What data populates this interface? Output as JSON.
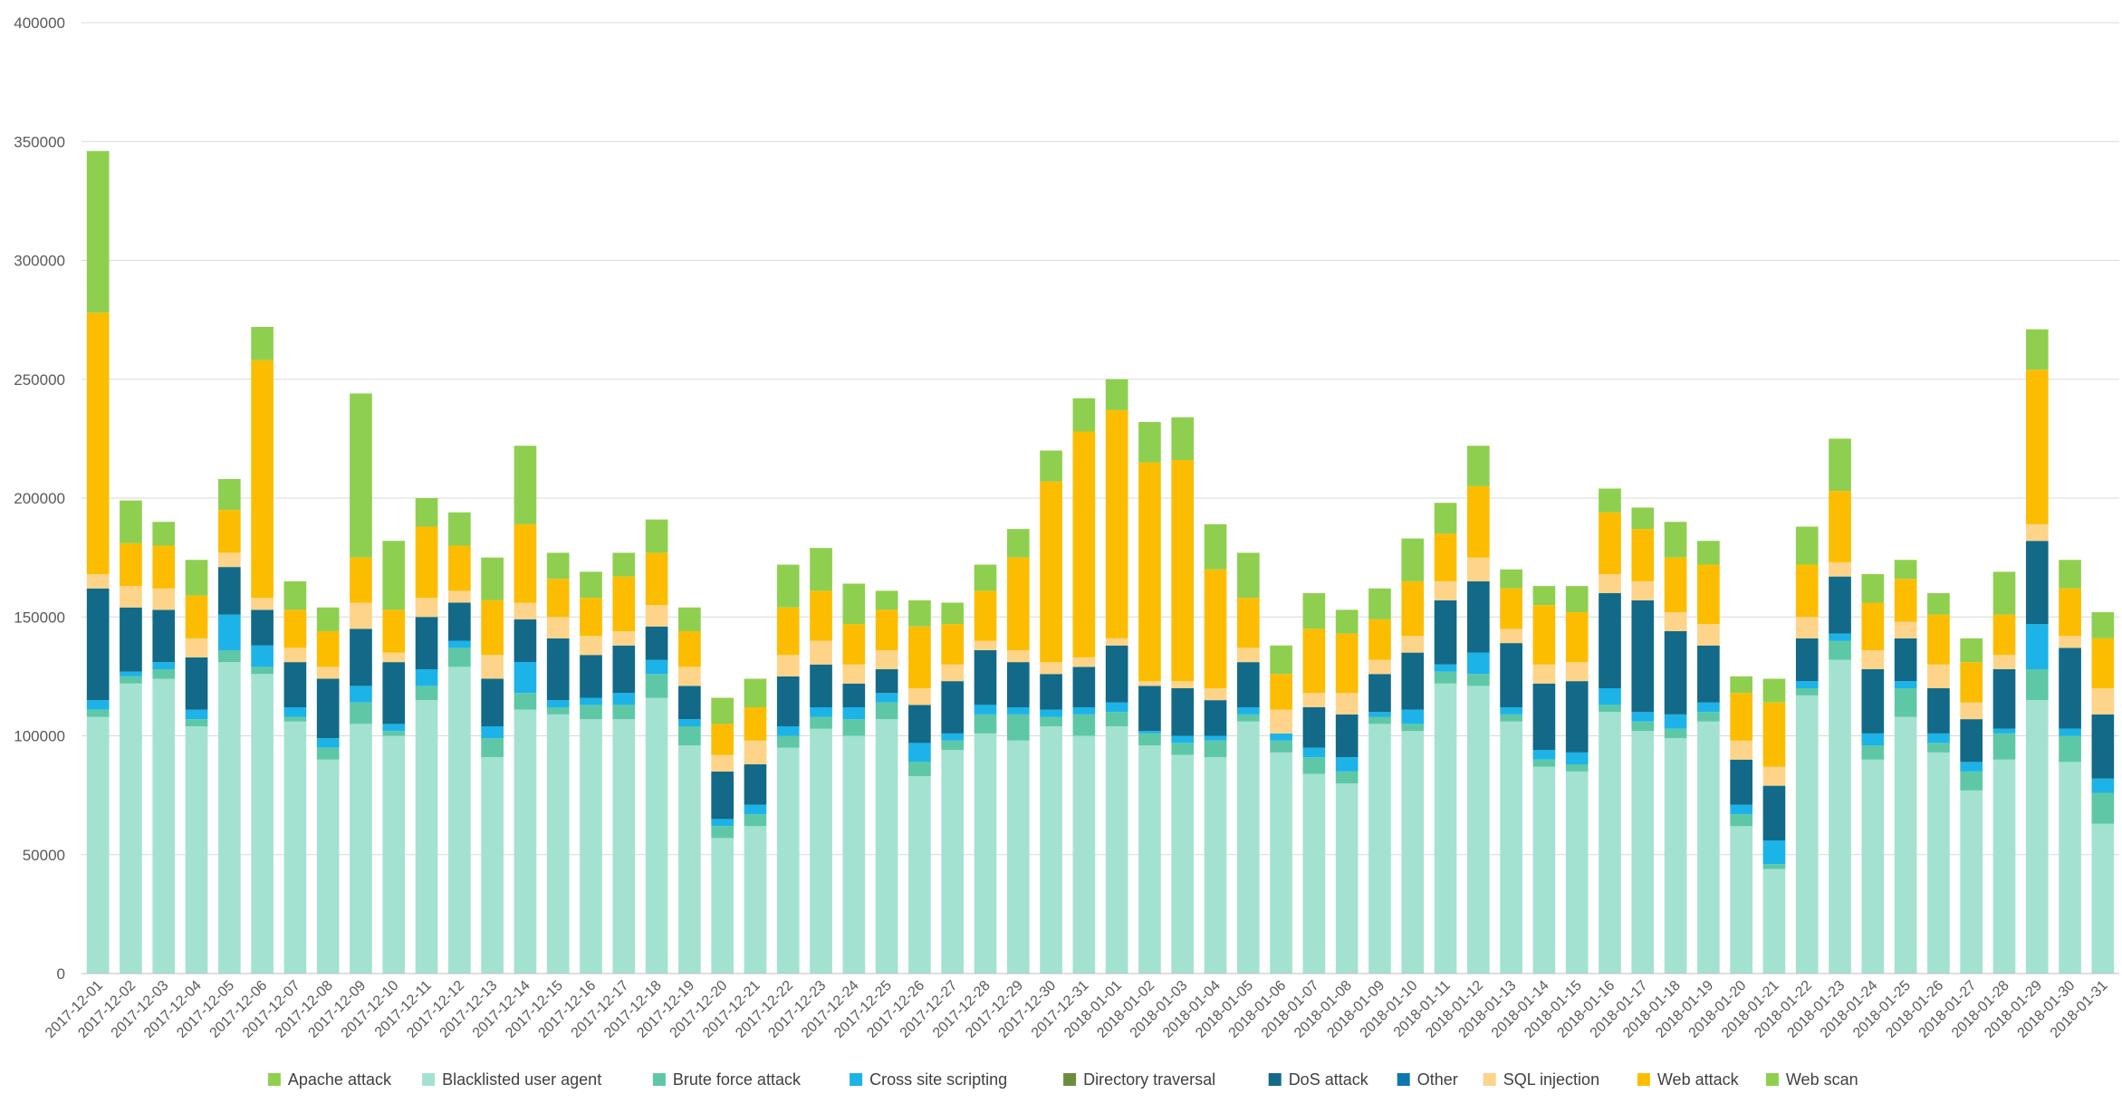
{
  "chart_data": {
    "type": "bar",
    "stacked": true,
    "title": "",
    "xlabel": "",
    "ylabel": "",
    "ylim": [
      0,
      400000
    ],
    "yticks": [
      "0",
      "50000",
      "100000",
      "150000",
      "200000",
      "250000",
      "300000",
      "350000",
      "400000"
    ],
    "grid": "horizontal",
    "legend_position": "bottom",
    "categories": [
      "2017-12-01",
      "2017-12-02",
      "2017-12-03",
      "2017-12-04",
      "2017-12-05",
      "2017-12-06",
      "2017-12-07",
      "2017-12-08",
      "2017-12-09",
      "2017-12-10",
      "2017-12-11",
      "2017-12-12",
      "2017-12-13",
      "2017-12-14",
      "2017-12-15",
      "2017-12-16",
      "2017-12-17",
      "2017-12-18",
      "2017-12-19",
      "2017-12-20",
      "2017-12-21",
      "2017-12-22",
      "2017-12-23",
      "2017-12-24",
      "2017-12-25",
      "2017-12-26",
      "2017-12-27",
      "2017-12-28",
      "2017-12-29",
      "2017-12-30",
      "2017-12-31",
      "2018-01-01",
      "2018-01-02",
      "2018-01-03",
      "2018-01-04",
      "2018-01-05",
      "2018-01-06",
      "2018-01-07",
      "2018-01-08",
      "2018-01-09",
      "2018-01-10",
      "2018-01-11",
      "2018-01-12",
      "2018-01-13",
      "2018-01-14",
      "2018-01-15",
      "2018-01-16",
      "2018-01-17",
      "2018-01-18",
      "2018-01-19",
      "2018-01-20",
      "2018-01-21",
      "2018-01-22",
      "2018-01-23",
      "2018-01-24",
      "2018-01-25",
      "2018-01-26",
      "2018-01-27",
      "2018-01-28",
      "2018-01-29",
      "2018-01-30",
      "2018-01-31"
    ],
    "series": [
      {
        "name": "Blacklisted user agent",
        "color": "#a3e2d1",
        "values": [
          108000,
          122000,
          124000,
          104000,
          131000,
          126000,
          106000,
          90000,
          105000,
          100000,
          115000,
          129000,
          91000,
          111000,
          109000,
          107000,
          107000,
          116000,
          96000,
          57000,
          62000,
          95000,
          103000,
          100000,
          107000,
          83000,
          94000,
          101000,
          98000,
          104000,
          100000,
          104000,
          96000,
          92000,
          91000,
          106000,
          93000,
          84000,
          80000,
          105000,
          102000,
          122000,
          121000,
          106000,
          87000,
          85000,
          110000,
          102000,
          99000,
          106000,
          62000,
          44000,
          117000,
          132000,
          90000,
          108000,
          93000,
          77000,
          90000,
          115000,
          89000,
          63000
        ]
      },
      {
        "name": "Brute force attack",
        "color": "#5ec8a6",
        "values": [
          3000,
          3000,
          4000,
          3000,
          5000,
          3000,
          2000,
          5000,
          9000,
          2000,
          6000,
          8000,
          8000,
          7000,
          3000,
          6000,
          6000,
          10000,
          8000,
          5000,
          5000,
          5000,
          5000,
          7000,
          7000,
          6000,
          4000,
          8000,
          11000,
          4000,
          9000,
          6000,
          5000,
          5000,
          7000,
          3000,
          5000,
          7000,
          5000,
          3000,
          3000,
          5000,
          5000,
          3000,
          3000,
          3000,
          3000,
          4000,
          4000,
          4000,
          5000,
          2000,
          3000,
          8000,
          6000,
          12000,
          4000,
          8000,
          11000,
          13000,
          11000,
          13000
        ]
      },
      {
        "name": "Cross site scripting",
        "color": "#1cb3e8",
        "values": [
          4000,
          2000,
          3000,
          4000,
          15000,
          9000,
          4000,
          4000,
          7000,
          3000,
          7000,
          3000,
          5000,
          13000,
          3000,
          3000,
          5000,
          6000,
          3000,
          3000,
          4000,
          4000,
          4000,
          5000,
          4000,
          8000,
          3000,
          4000,
          3000,
          3000,
          3000,
          4000,
          1000,
          3000,
          2000,
          3000,
          3000,
          4000,
          6000,
          2000,
          6000,
          3000,
          9000,
          3000,
          4000,
          5000,
          7000,
          4000,
          6000,
          4000,
          4000,
          10000,
          3000,
          3000,
          5000,
          3000,
          4000,
          4000,
          2000,
          19000,
          3000,
          6000
        ]
      },
      {
        "name": "Directory traversal",
        "color": "#6b8e3d",
        "values": [
          0,
          0,
          0,
          0,
          0,
          0,
          0,
          0,
          0,
          0,
          0,
          0,
          0,
          0,
          0,
          0,
          0,
          0,
          0,
          0,
          0,
          0,
          0,
          0,
          0,
          0,
          0,
          0,
          0,
          0,
          0,
          0,
          0,
          0,
          0,
          0,
          0,
          0,
          0,
          0,
          0,
          0,
          0,
          0,
          0,
          0,
          0,
          0,
          0,
          0,
          0,
          0,
          0,
          0,
          0,
          0,
          0,
          0,
          0,
          0,
          0,
          0
        ]
      },
      {
        "name": "DoS attack",
        "color": "#126a88",
        "values": [
          47000,
          27000,
          22000,
          22000,
          20000,
          15000,
          19000,
          25000,
          24000,
          26000,
          22000,
          16000,
          20000,
          18000,
          26000,
          18000,
          20000,
          14000,
          14000,
          20000,
          17000,
          21000,
          18000,
          10000,
          10000,
          16000,
          22000,
          23000,
          19000,
          15000,
          17000,
          24000,
          19000,
          20000,
          15000,
          19000,
          0,
          17000,
          18000,
          16000,
          24000,
          27000,
          30000,
          27000,
          28000,
          30000,
          40000,
          47000,
          35000,
          24000,
          19000,
          23000,
          18000,
          24000,
          27000,
          18000,
          19000,
          18000,
          25000,
          35000,
          34000,
          27000
        ]
      },
      {
        "name": "Other",
        "color": "#0f76b0",
        "values": [
          0,
          0,
          0,
          0,
          0,
          0,
          0,
          0,
          0,
          0,
          0,
          0,
          0,
          0,
          0,
          0,
          0,
          0,
          0,
          0,
          0,
          0,
          0,
          0,
          0,
          0,
          0,
          0,
          0,
          0,
          0,
          0,
          0,
          0,
          0,
          0,
          0,
          0,
          0,
          0,
          0,
          0,
          0,
          0,
          0,
          0,
          0,
          0,
          0,
          0,
          0,
          0,
          0,
          0,
          0,
          0,
          0,
          0,
          0,
          0,
          0,
          0
        ]
      },
      {
        "name": "SQL injection",
        "color": "#fdd489",
        "values": [
          6000,
          9000,
          9000,
          8000,
          6000,
          5000,
          6000,
          5000,
          11000,
          4000,
          8000,
          5000,
          10000,
          7000,
          9000,
          8000,
          6000,
          9000,
          8000,
          7000,
          10000,
          9000,
          10000,
          8000,
          8000,
          7000,
          7000,
          4000,
          5000,
          5000,
          4000,
          3000,
          2000,
          3000,
          5000,
          6000,
          10000,
          6000,
          9000,
          6000,
          7000,
          8000,
          10000,
          6000,
          8000,
          8000,
          8000,
          8000,
          8000,
          9000,
          8000,
          8000,
          9000,
          6000,
          8000,
          7000,
          10000,
          7000,
          6000,
          7000,
          5000,
          11000
        ]
      },
      {
        "name": "Web attack",
        "color": "#fcbd01",
        "values": [
          110000,
          18000,
          18000,
          18000,
          18000,
          100000,
          16000,
          15000,
          19000,
          18000,
          30000,
          19000,
          23000,
          33000,
          16000,
          16000,
          23000,
          22000,
          15000,
          13000,
          14000,
          20000,
          21000,
          17000,
          17000,
          26000,
          17000,
          21000,
          39000,
          76000,
          95000,
          96000,
          92000,
          93000,
          50000,
          21000,
          15000,
          27000,
          25000,
          17000,
          23000,
          20000,
          30000,
          17000,
          25000,
          21000,
          26000,
          22000,
          23000,
          25000,
          20000,
          27000,
          22000,
          30000,
          20000,
          18000,
          21000,
          17000,
          17000,
          65000,
          20000,
          21000
        ]
      },
      {
        "name": "Web scan",
        "color": "#8fcf4f",
        "values": [
          68000,
          18000,
          10000,
          15000,
          13000,
          14000,
          12000,
          10000,
          69000,
          29000,
          12000,
          14000,
          18000,
          33000,
          11000,
          11000,
          10000,
          14000,
          10000,
          11000,
          12000,
          18000,
          18000,
          17000,
          8000,
          11000,
          9000,
          11000,
          12000,
          13000,
          14000,
          13000,
          17000,
          18000,
          19000,
          19000,
          12000,
          15000,
          10000,
          13000,
          18000,
          13000,
          17000,
          8000,
          8000,
          11000,
          10000,
          9000,
          15000,
          10000,
          7000,
          10000,
          16000,
          22000,
          12000,
          8000,
          9000,
          10000,
          18000,
          17000,
          12000,
          11000
        ]
      },
      {
        "name": "Apache attack",
        "color": "#8fcf4f",
        "values": [
          0,
          0,
          0,
          0,
          0,
          0,
          0,
          0,
          0,
          0,
          0,
          0,
          0,
          0,
          0,
          0,
          0,
          0,
          0,
          0,
          0,
          0,
          0,
          0,
          0,
          0,
          0,
          0,
          0,
          0,
          0,
          0,
          0,
          0,
          0,
          0,
          0,
          0,
          0,
          0,
          0,
          0,
          0,
          0,
          0,
          0,
          0,
          0,
          0,
          0,
          0,
          0,
          0,
          0,
          0,
          0,
          0,
          0,
          0,
          0,
          0,
          0
        ]
      }
    ],
    "legend": [
      {
        "name": "Apache attack",
        "color": "#8fcf4f"
      },
      {
        "name": "Blacklisted user agent",
        "color": "#a3e2d1"
      },
      {
        "name": "Brute force attack",
        "color": "#5ec8a6"
      },
      {
        "name": "Cross site scripting",
        "color": "#1cb3e8"
      },
      {
        "name": "Directory traversal",
        "color": "#6b8e3d"
      },
      {
        "name": "DoS attack",
        "color": "#126a88"
      },
      {
        "name": "Other",
        "color": "#0f76b0"
      },
      {
        "name": "SQL injection",
        "color": "#fdd489"
      },
      {
        "name": "Web attack",
        "color": "#fcbd01"
      },
      {
        "name": "Web scan",
        "color": "#8fcf4f"
      }
    ]
  }
}
